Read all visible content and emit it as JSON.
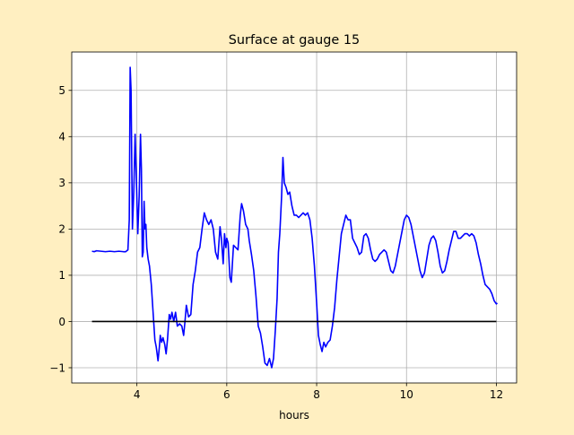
{
  "chart_data": {
    "type": "line",
    "title": "Surface at gauge 15",
    "xlabel": "hours",
    "ylabel": "",
    "xlim": [
      2.55,
      12.45
    ],
    "ylim": [
      -1.33,
      5.83
    ],
    "grid": true,
    "x_ticks": [
      4,
      6,
      8,
      10,
      12
    ],
    "y_ticks": [
      -1,
      0,
      1,
      2,
      3,
      4,
      5
    ],
    "colors": {
      "background": "#ffefc1",
      "plot_background": "#ffffff",
      "surface": "#0000ff",
      "zero_line": "#000000",
      "grid": "#b0b0b0"
    },
    "series": [
      {
        "color": "#0000ff",
        "points": [
          [
            3.0,
            1.52
          ],
          [
            3.05,
            1.51
          ],
          [
            3.1,
            1.53
          ],
          [
            3.2,
            1.52
          ],
          [
            3.3,
            1.51
          ],
          [
            3.4,
            1.52
          ],
          [
            3.5,
            1.51
          ],
          [
            3.6,
            1.52
          ],
          [
            3.7,
            1.51
          ],
          [
            3.75,
            1.51
          ],
          [
            3.8,
            1.55
          ],
          [
            3.83,
            2.2
          ],
          [
            3.85,
            5.5
          ],
          [
            3.87,
            5.0
          ],
          [
            3.9,
            2.0
          ],
          [
            3.93,
            2.8
          ],
          [
            3.96,
            4.05
          ],
          [
            3.99,
            3.0
          ],
          [
            4.02,
            1.9
          ],
          [
            4.05,
            2.7
          ],
          [
            4.08,
            4.05
          ],
          [
            4.1,
            3.3
          ],
          [
            4.12,
            1.4
          ],
          [
            4.14,
            1.5
          ],
          [
            4.16,
            2.6
          ],
          [
            4.18,
            2.0
          ],
          [
            4.2,
            2.1
          ],
          [
            4.22,
            1.6
          ],
          [
            4.25,
            1.35
          ],
          [
            4.28,
            1.2
          ],
          [
            4.32,
            0.8
          ],
          [
            4.36,
            0.2
          ],
          [
            4.4,
            -0.4
          ],
          [
            4.43,
            -0.55
          ],
          [
            4.47,
            -0.85
          ],
          [
            4.5,
            -0.55
          ],
          [
            4.52,
            -0.3
          ],
          [
            4.55,
            -0.45
          ],
          [
            4.58,
            -0.35
          ],
          [
            4.62,
            -0.5
          ],
          [
            4.65,
            -0.7
          ],
          [
            4.68,
            -0.4
          ],
          [
            4.72,
            0.15
          ],
          [
            4.75,
            0.05
          ],
          [
            4.78,
            0.2
          ],
          [
            4.82,
            0.0
          ],
          [
            4.86,
            0.2
          ],
          [
            4.9,
            -0.1
          ],
          [
            4.95,
            -0.05
          ],
          [
            5.0,
            -0.1
          ],
          [
            5.04,
            -0.3
          ],
          [
            5.07,
            0.0
          ],
          [
            5.1,
            0.35
          ],
          [
            5.15,
            0.1
          ],
          [
            5.2,
            0.15
          ],
          [
            5.25,
            0.8
          ],
          [
            5.3,
            1.1
          ],
          [
            5.35,
            1.5
          ],
          [
            5.4,
            1.6
          ],
          [
            5.45,
            2.0
          ],
          [
            5.5,
            2.35
          ],
          [
            5.55,
            2.2
          ],
          [
            5.6,
            2.1
          ],
          [
            5.65,
            2.2
          ],
          [
            5.7,
            2.0
          ],
          [
            5.75,
            1.5
          ],
          [
            5.8,
            1.35
          ],
          [
            5.85,
            2.05
          ],
          [
            5.88,
            1.8
          ],
          [
            5.92,
            1.25
          ],
          [
            5.95,
            1.9
          ],
          [
            5.98,
            1.6
          ],
          [
            6.0,
            1.8
          ],
          [
            6.03,
            1.7
          ],
          [
            6.07,
            0.95
          ],
          [
            6.1,
            0.85
          ],
          [
            6.15,
            1.65
          ],
          [
            6.2,
            1.6
          ],
          [
            6.25,
            1.55
          ],
          [
            6.3,
            2.3
          ],
          [
            6.33,
            2.55
          ],
          [
            6.37,
            2.4
          ],
          [
            6.42,
            2.1
          ],
          [
            6.47,
            2.0
          ],
          [
            6.5,
            1.75
          ],
          [
            6.55,
            1.45
          ],
          [
            6.6,
            1.1
          ],
          [
            6.65,
            0.55
          ],
          [
            6.7,
            -0.1
          ],
          [
            6.75,
            -0.25
          ],
          [
            6.8,
            -0.55
          ],
          [
            6.85,
            -0.9
          ],
          [
            6.9,
            -0.95
          ],
          [
            6.95,
            -0.8
          ],
          [
            7.0,
            -1.0
          ],
          [
            7.04,
            -0.8
          ],
          [
            7.08,
            -0.2
          ],
          [
            7.12,
            0.5
          ],
          [
            7.15,
            1.5
          ],
          [
            7.18,
            1.9
          ],
          [
            7.22,
            2.7
          ],
          [
            7.25,
            3.55
          ],
          [
            7.28,
            3.0
          ],
          [
            7.32,
            2.9
          ],
          [
            7.36,
            2.75
          ],
          [
            7.4,
            2.8
          ],
          [
            7.45,
            2.5
          ],
          [
            7.5,
            2.3
          ],
          [
            7.55,
            2.3
          ],
          [
            7.6,
            2.25
          ],
          [
            7.65,
            2.3
          ],
          [
            7.7,
            2.35
          ],
          [
            7.75,
            2.3
          ],
          [
            7.8,
            2.35
          ],
          [
            7.85,
            2.2
          ],
          [
            7.9,
            1.8
          ],
          [
            7.95,
            1.2
          ],
          [
            8.0,
            0.4
          ],
          [
            8.04,
            -0.3
          ],
          [
            8.08,
            -0.5
          ],
          [
            8.12,
            -0.65
          ],
          [
            8.16,
            -0.45
          ],
          [
            8.2,
            -0.55
          ],
          [
            8.25,
            -0.45
          ],
          [
            8.3,
            -0.4
          ],
          [
            8.35,
            -0.1
          ],
          [
            8.4,
            0.3
          ],
          [
            8.45,
            0.9
          ],
          [
            8.5,
            1.4
          ],
          [
            8.55,
            1.9
          ],
          [
            8.6,
            2.1
          ],
          [
            8.65,
            2.3
          ],
          [
            8.7,
            2.2
          ],
          [
            8.75,
            2.2
          ],
          [
            8.8,
            1.8
          ],
          [
            8.85,
            1.7
          ],
          [
            8.9,
            1.6
          ],
          [
            8.95,
            1.45
          ],
          [
            9.0,
            1.5
          ],
          [
            9.05,
            1.85
          ],
          [
            9.1,
            1.9
          ],
          [
            9.15,
            1.8
          ],
          [
            9.2,
            1.55
          ],
          [
            9.25,
            1.35
          ],
          [
            9.3,
            1.3
          ],
          [
            9.35,
            1.35
          ],
          [
            9.4,
            1.45
          ],
          [
            9.45,
            1.5
          ],
          [
            9.5,
            1.55
          ],
          [
            9.55,
            1.5
          ],
          [
            9.6,
            1.3
          ],
          [
            9.65,
            1.1
          ],
          [
            9.7,
            1.05
          ],
          [
            9.75,
            1.2
          ],
          [
            9.8,
            1.45
          ],
          [
            9.85,
            1.7
          ],
          [
            9.9,
            1.95
          ],
          [
            9.95,
            2.2
          ],
          [
            10.0,
            2.3
          ],
          [
            10.05,
            2.25
          ],
          [
            10.1,
            2.1
          ],
          [
            10.15,
            1.85
          ],
          [
            10.2,
            1.6
          ],
          [
            10.25,
            1.35
          ],
          [
            10.3,
            1.1
          ],
          [
            10.35,
            0.95
          ],
          [
            10.4,
            1.05
          ],
          [
            10.45,
            1.35
          ],
          [
            10.5,
            1.65
          ],
          [
            10.55,
            1.8
          ],
          [
            10.6,
            1.85
          ],
          [
            10.65,
            1.75
          ],
          [
            10.7,
            1.5
          ],
          [
            10.75,
            1.2
          ],
          [
            10.8,
            1.05
          ],
          [
            10.85,
            1.1
          ],
          [
            10.9,
            1.3
          ],
          [
            10.95,
            1.55
          ],
          [
            11.0,
            1.75
          ],
          [
            11.05,
            1.95
          ],
          [
            11.1,
            1.95
          ],
          [
            11.15,
            1.8
          ],
          [
            11.2,
            1.8
          ],
          [
            11.25,
            1.85
          ],
          [
            11.3,
            1.9
          ],
          [
            11.35,
            1.9
          ],
          [
            11.4,
            1.85
          ],
          [
            11.45,
            1.9
          ],
          [
            11.5,
            1.85
          ],
          [
            11.55,
            1.7
          ],
          [
            11.6,
            1.45
          ],
          [
            11.65,
            1.25
          ],
          [
            11.7,
            1.0
          ],
          [
            11.75,
            0.8
          ],
          [
            11.8,
            0.75
          ],
          [
            11.85,
            0.7
          ],
          [
            11.9,
            0.6
          ],
          [
            11.95,
            0.45
          ],
          [
            12.0,
            0.38
          ],
          [
            12.02,
            0.4
          ]
        ]
      },
      {
        "color": "#000000",
        "points": [
          [
            3.0,
            0.0
          ],
          [
            12.0,
            0.0
          ]
        ]
      }
    ]
  }
}
